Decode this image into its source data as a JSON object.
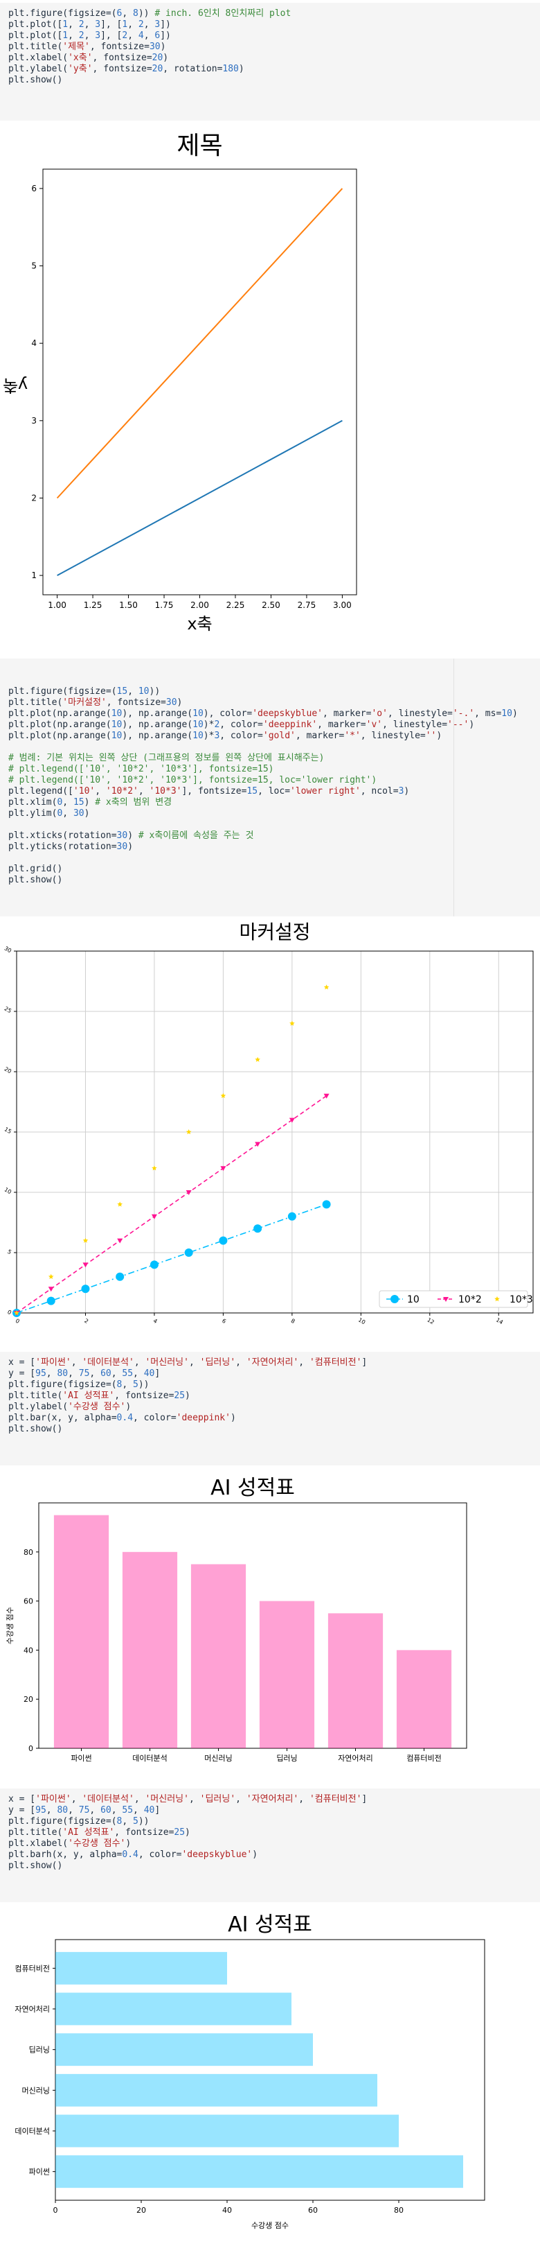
{
  "cells": [
    {
      "code": [
        [
          [
            "plt.figure(figsize=(",
            "fn"
          ],
          [
            "6",
            "num"
          ],
          [
            ", ",
            "fn"
          ],
          [
            "8",
            "num"
          ],
          [
            ")) ",
            "fn"
          ],
          [
            "# inch. 6인치 8인치짜리 plot",
            "cmt"
          ]
        ],
        [
          [
            "plt.plot([",
            "fn"
          ],
          [
            "1",
            "num"
          ],
          [
            ", ",
            "fn"
          ],
          [
            "2",
            "num"
          ],
          [
            ", ",
            "fn"
          ],
          [
            "3",
            "num"
          ],
          [
            "], [",
            "fn"
          ],
          [
            "1",
            "num"
          ],
          [
            ", ",
            "fn"
          ],
          [
            "2",
            "num"
          ],
          [
            ", ",
            "fn"
          ],
          [
            "3",
            "num"
          ],
          [
            "])",
            "fn"
          ]
        ],
        [
          [
            "plt.plot([",
            "fn"
          ],
          [
            "1",
            "num"
          ],
          [
            ", ",
            "fn"
          ],
          [
            "2",
            "num"
          ],
          [
            ", ",
            "fn"
          ],
          [
            "3",
            "num"
          ],
          [
            "], [",
            "fn"
          ],
          [
            "2",
            "num"
          ],
          [
            ", ",
            "fn"
          ],
          [
            "4",
            "num"
          ],
          [
            ", ",
            "fn"
          ],
          [
            "6",
            "num"
          ],
          [
            "])",
            "fn"
          ]
        ],
        [
          [
            "plt.title(",
            "fn"
          ],
          [
            "'제목'",
            "str"
          ],
          [
            ", fontsize=",
            "fn"
          ],
          [
            "30",
            "num"
          ],
          [
            ")",
            "fn"
          ]
        ],
        [
          [
            "plt.xlabel(",
            "fn"
          ],
          [
            "'x축'",
            "str"
          ],
          [
            ", fontsize=",
            "fn"
          ],
          [
            "20",
            "num"
          ],
          [
            ")",
            "fn"
          ]
        ],
        [
          [
            "plt.ylabel(",
            "fn"
          ],
          [
            "'y축'",
            "str"
          ],
          [
            ", fontsize=",
            "fn"
          ],
          [
            "20",
            "num"
          ],
          [
            ", rotation=",
            "fn"
          ],
          [
            "180",
            "num"
          ],
          [
            ")",
            "fn"
          ]
        ],
        [
          [
            "plt.show()",
            "fn"
          ]
        ]
      ]
    },
    {
      "code": [
        [
          [
            "plt.figure(figsize=(",
            "fn"
          ],
          [
            "15",
            "num"
          ],
          [
            ", ",
            "fn"
          ],
          [
            "10",
            "num"
          ],
          [
            "))",
            "fn"
          ]
        ],
        [
          [
            "plt.title(",
            "fn"
          ],
          [
            "'마커설정'",
            "str"
          ],
          [
            ", fontsize=",
            "fn"
          ],
          [
            "30",
            "num"
          ],
          [
            ")",
            "fn"
          ]
        ],
        [
          [
            "plt.plot(np.arange(",
            "fn"
          ],
          [
            "10",
            "num"
          ],
          [
            "), np.arange(",
            "fn"
          ],
          [
            "10",
            "num"
          ],
          [
            "), color=",
            "fn"
          ],
          [
            "'deepskyblue'",
            "str"
          ],
          [
            ", marker=",
            "fn"
          ],
          [
            "'o'",
            "str"
          ],
          [
            ", linestyle=",
            "fn"
          ],
          [
            "'-.'",
            "str"
          ],
          [
            ", ms=",
            "fn"
          ],
          [
            "10",
            "num"
          ],
          [
            ")",
            "fn"
          ]
        ],
        [
          [
            "plt.plot(np.arange(",
            "fn"
          ],
          [
            "10",
            "num"
          ],
          [
            "), np.arange(",
            "fn"
          ],
          [
            "10",
            "num"
          ],
          [
            ")*",
            "fn"
          ],
          [
            "2",
            "num"
          ],
          [
            ", color=",
            "fn"
          ],
          [
            "'deeppink'",
            "str"
          ],
          [
            ", marker=",
            "fn"
          ],
          [
            "'v'",
            "str"
          ],
          [
            ", linestyle=",
            "fn"
          ],
          [
            "'--'",
            "str"
          ],
          [
            ")",
            "fn"
          ]
        ],
        [
          [
            "plt.plot(np.arange(",
            "fn"
          ],
          [
            "10",
            "num"
          ],
          [
            "), np.arange(",
            "fn"
          ],
          [
            "10",
            "num"
          ],
          [
            ")*",
            "fn"
          ],
          [
            "3",
            "num"
          ],
          [
            ", color=",
            "fn"
          ],
          [
            "'gold'",
            "str"
          ],
          [
            ", marker=",
            "fn"
          ],
          [
            "'*'",
            "str"
          ],
          [
            ", linestyle=",
            "fn"
          ],
          [
            "''",
            "str"
          ],
          [
            ")",
            "fn"
          ]
        ],
        [],
        [
          [
            "# 범례: 기본 위치는 왼쪽 상단 (그래프용의 정보를 왼쪽 상단에 표시해주는)",
            "cmt"
          ]
        ],
        [
          [
            "# plt.legend(['10', '10*2', '10*3'], fontsize=15)",
            "cmt"
          ]
        ],
        [
          [
            "# plt.legend(['10', '10*2', '10*3'], fontsize=15, loc='lower right')",
            "cmt"
          ]
        ],
        [
          [
            "plt.legend([",
            "fn"
          ],
          [
            "'10'",
            "str"
          ],
          [
            ", ",
            "fn"
          ],
          [
            "'10*2'",
            "str"
          ],
          [
            ", ",
            "fn"
          ],
          [
            "'10*3'",
            "str"
          ],
          [
            "], fontsize=",
            "fn"
          ],
          [
            "15",
            "num"
          ],
          [
            ", loc=",
            "fn"
          ],
          [
            "'lower right'",
            "str"
          ],
          [
            ", ncol=",
            "fn"
          ],
          [
            "3",
            "num"
          ],
          [
            ")",
            "fn"
          ]
        ],
        [
          [
            "plt.xlim(",
            "fn"
          ],
          [
            "0",
            "num"
          ],
          [
            ", ",
            "fn"
          ],
          [
            "15",
            "num"
          ],
          [
            ") ",
            "fn"
          ],
          [
            "# x축의 범위 변경",
            "cmt"
          ]
        ],
        [
          [
            "plt.ylim(",
            "fn"
          ],
          [
            "0",
            "num"
          ],
          [
            ", ",
            "fn"
          ],
          [
            "30",
            "num"
          ],
          [
            ")",
            "fn"
          ]
        ],
        [],
        [
          [
            "plt.xticks(rotation=",
            "fn"
          ],
          [
            "30",
            "num"
          ],
          [
            ") ",
            "fn"
          ],
          [
            "# x축이름에 속성을 주는 것",
            "cmt"
          ]
        ],
        [
          [
            "plt.yticks(rotation=",
            "fn"
          ],
          [
            "30",
            "num"
          ],
          [
            ")",
            "fn"
          ]
        ],
        [],
        [
          [
            "plt.grid()",
            "fn"
          ]
        ],
        [
          [
            "plt.show()",
            "fn"
          ]
        ]
      ]
    },
    {
      "code": [
        [
          [
            "x = [",
            "fn"
          ],
          [
            "'파이썬'",
            "str"
          ],
          [
            ", ",
            "fn"
          ],
          [
            "'데이터분석'",
            "str"
          ],
          [
            ", ",
            "fn"
          ],
          [
            "'머신러닝'",
            "str"
          ],
          [
            ", ",
            "fn"
          ],
          [
            "'딥러닝'",
            "str"
          ],
          [
            ", ",
            "fn"
          ],
          [
            "'자연어처리'",
            "str"
          ],
          [
            ", ",
            "fn"
          ],
          [
            "'컴퓨터비전'",
            "str"
          ],
          [
            "]",
            "fn"
          ]
        ],
        [
          [
            "y = [",
            "fn"
          ],
          [
            "95",
            "num"
          ],
          [
            ", ",
            "fn"
          ],
          [
            "80",
            "num"
          ],
          [
            ", ",
            "fn"
          ],
          [
            "75",
            "num"
          ],
          [
            ", ",
            "fn"
          ],
          [
            "60",
            "num"
          ],
          [
            ", ",
            "fn"
          ],
          [
            "55",
            "num"
          ],
          [
            ", ",
            "fn"
          ],
          [
            "40",
            "num"
          ],
          [
            "]",
            "fn"
          ]
        ],
        [
          [
            "plt.figure(figsize=(",
            "fn"
          ],
          [
            "8",
            "num"
          ],
          [
            ", ",
            "fn"
          ],
          [
            "5",
            "num"
          ],
          [
            "))",
            "fn"
          ]
        ],
        [
          [
            "plt.title(",
            "fn"
          ],
          [
            "'AI 성적표'",
            "str"
          ],
          [
            ", fontsize=",
            "fn"
          ],
          [
            "25",
            "num"
          ],
          [
            ")",
            "fn"
          ]
        ],
        [
          [
            "plt.ylabel(",
            "fn"
          ],
          [
            "'수강생 점수'",
            "str"
          ],
          [
            ")",
            "fn"
          ]
        ],
        [
          [
            "plt.bar(x, y, alpha=",
            "fn"
          ],
          [
            "0.4",
            "num"
          ],
          [
            ", color=",
            "fn"
          ],
          [
            "'deeppink'",
            "str"
          ],
          [
            ")",
            "fn"
          ]
        ],
        [
          [
            "plt.show()",
            "fn"
          ]
        ]
      ]
    },
    {
      "code": [
        [
          [
            "x = [",
            "fn"
          ],
          [
            "'파이썬'",
            "str"
          ],
          [
            ", ",
            "fn"
          ],
          [
            "'데이터분석'",
            "str"
          ],
          [
            ", ",
            "fn"
          ],
          [
            "'머신러닝'",
            "str"
          ],
          [
            ", ",
            "fn"
          ],
          [
            "'딥러닝'",
            "str"
          ],
          [
            ", ",
            "fn"
          ],
          [
            "'자연어처리'",
            "str"
          ],
          [
            ", ",
            "fn"
          ],
          [
            "'컴퓨터비전'",
            "str"
          ],
          [
            "]",
            "fn"
          ]
        ],
        [
          [
            "y = [",
            "fn"
          ],
          [
            "95",
            "num"
          ],
          [
            ", ",
            "fn"
          ],
          [
            "80",
            "num"
          ],
          [
            ", ",
            "fn"
          ],
          [
            "75",
            "num"
          ],
          [
            ", ",
            "fn"
          ],
          [
            "60",
            "num"
          ],
          [
            ", ",
            "fn"
          ],
          [
            "55",
            "num"
          ],
          [
            ", ",
            "fn"
          ],
          [
            "40",
            "num"
          ],
          [
            "]",
            "fn"
          ]
        ],
        [
          [
            "plt.figure(figsize=(",
            "fn"
          ],
          [
            "8",
            "num"
          ],
          [
            ", ",
            "fn"
          ],
          [
            "5",
            "num"
          ],
          [
            "))",
            "fn"
          ]
        ],
        [
          [
            "plt.title(",
            "fn"
          ],
          [
            "'AI 성적표'",
            "str"
          ],
          [
            ", fontsize=",
            "fn"
          ],
          [
            "25",
            "num"
          ],
          [
            ")",
            "fn"
          ]
        ],
        [
          [
            "plt.xlabel(",
            "fn"
          ],
          [
            "'수강생 점수'",
            "str"
          ],
          [
            ")",
            "fn"
          ]
        ],
        [
          [
            "plt.barh(x, y, alpha=",
            "fn"
          ],
          [
            "0.4",
            "num"
          ],
          [
            ", color=",
            "fn"
          ],
          [
            "'deepskyblue'",
            "str"
          ],
          [
            ")",
            "fn"
          ]
        ],
        [
          [
            "plt.show()",
            "fn"
          ]
        ]
      ]
    }
  ],
  "chart_data": [
    {
      "type": "line",
      "title": "제목",
      "xlabel": "x축",
      "ylabel": "y축",
      "xlim": [
        0.9,
        3.1
      ],
      "ylim": [
        0.75,
        6.25
      ],
      "xticks": [
        "1.00",
        "1.25",
        "1.50",
        "1.75",
        "2.00",
        "2.25",
        "2.50",
        "2.75",
        "3.00"
      ],
      "yticks": [
        "1",
        "2",
        "3",
        "4",
        "5",
        "6"
      ],
      "series": [
        {
          "x": [
            1,
            2,
            3
          ],
          "values": [
            1,
            2,
            3
          ],
          "color": "#1f77b4"
        },
        {
          "x": [
            1,
            2,
            3
          ],
          "values": [
            2,
            4,
            6
          ],
          "color": "#ff7f0e"
        }
      ]
    },
    {
      "type": "line",
      "title": "마커설정",
      "xlim": [
        0,
        15
      ],
      "ylim": [
        0,
        30
      ],
      "xticks": [
        "0",
        "2",
        "4",
        "6",
        "8",
        "10",
        "12",
        "14"
      ],
      "yticks": [
        "0",
        "5",
        "10",
        "15",
        "20",
        "25",
        "30"
      ],
      "grid": true,
      "legend": "lower-right",
      "series": [
        {
          "name": "10",
          "x": [
            0,
            1,
            2,
            3,
            4,
            5,
            6,
            7,
            8,
            9
          ],
          "values": [
            0,
            1,
            2,
            3,
            4,
            5,
            6,
            7,
            8,
            9
          ],
          "color": "#00bfff",
          "marker": "o",
          "linestyle": "-."
        },
        {
          "name": "10*2",
          "x": [
            0,
            1,
            2,
            3,
            4,
            5,
            6,
            7,
            8,
            9
          ],
          "values": [
            0,
            2,
            4,
            6,
            8,
            10,
            12,
            14,
            16,
            18
          ],
          "color": "#ff1493",
          "marker": "v",
          "linestyle": "--"
        },
        {
          "name": "10*3",
          "x": [
            0,
            1,
            2,
            3,
            4,
            5,
            6,
            7,
            8,
            9
          ],
          "values": [
            0,
            3,
            6,
            9,
            12,
            15,
            18,
            21,
            24,
            27
          ],
          "color": "#ffd700",
          "marker": "*",
          "linestyle": ""
        }
      ]
    },
    {
      "type": "bar",
      "title": "AI 성적표",
      "ylabel": "수강생 점수",
      "categories": [
        "파이썬",
        "데이터분석",
        "머신러닝",
        "딥러닝",
        "자연어처리",
        "컴퓨터비전"
      ],
      "values": [
        95,
        80,
        75,
        60,
        55,
        40
      ],
      "yticks": [
        "0",
        "20",
        "40",
        "60",
        "80"
      ],
      "ylim": [
        0,
        100
      ],
      "color": "#ff1493",
      "alpha": 0.4
    },
    {
      "type": "bar",
      "orientation": "horizontal",
      "title": "AI 성적표",
      "xlabel": "수강생 점수",
      "categories": [
        "파이썬",
        "데이터분석",
        "머신러닝",
        "딥러닝",
        "자연어처리",
        "컴퓨터비전"
      ],
      "values": [
        95,
        80,
        75,
        60,
        55,
        40
      ],
      "xticks": [
        "0",
        "20",
        "40",
        "60",
        "80"
      ],
      "xlim": [
        0,
        100
      ],
      "color": "#00bfff",
      "alpha": 0.4
    }
  ]
}
